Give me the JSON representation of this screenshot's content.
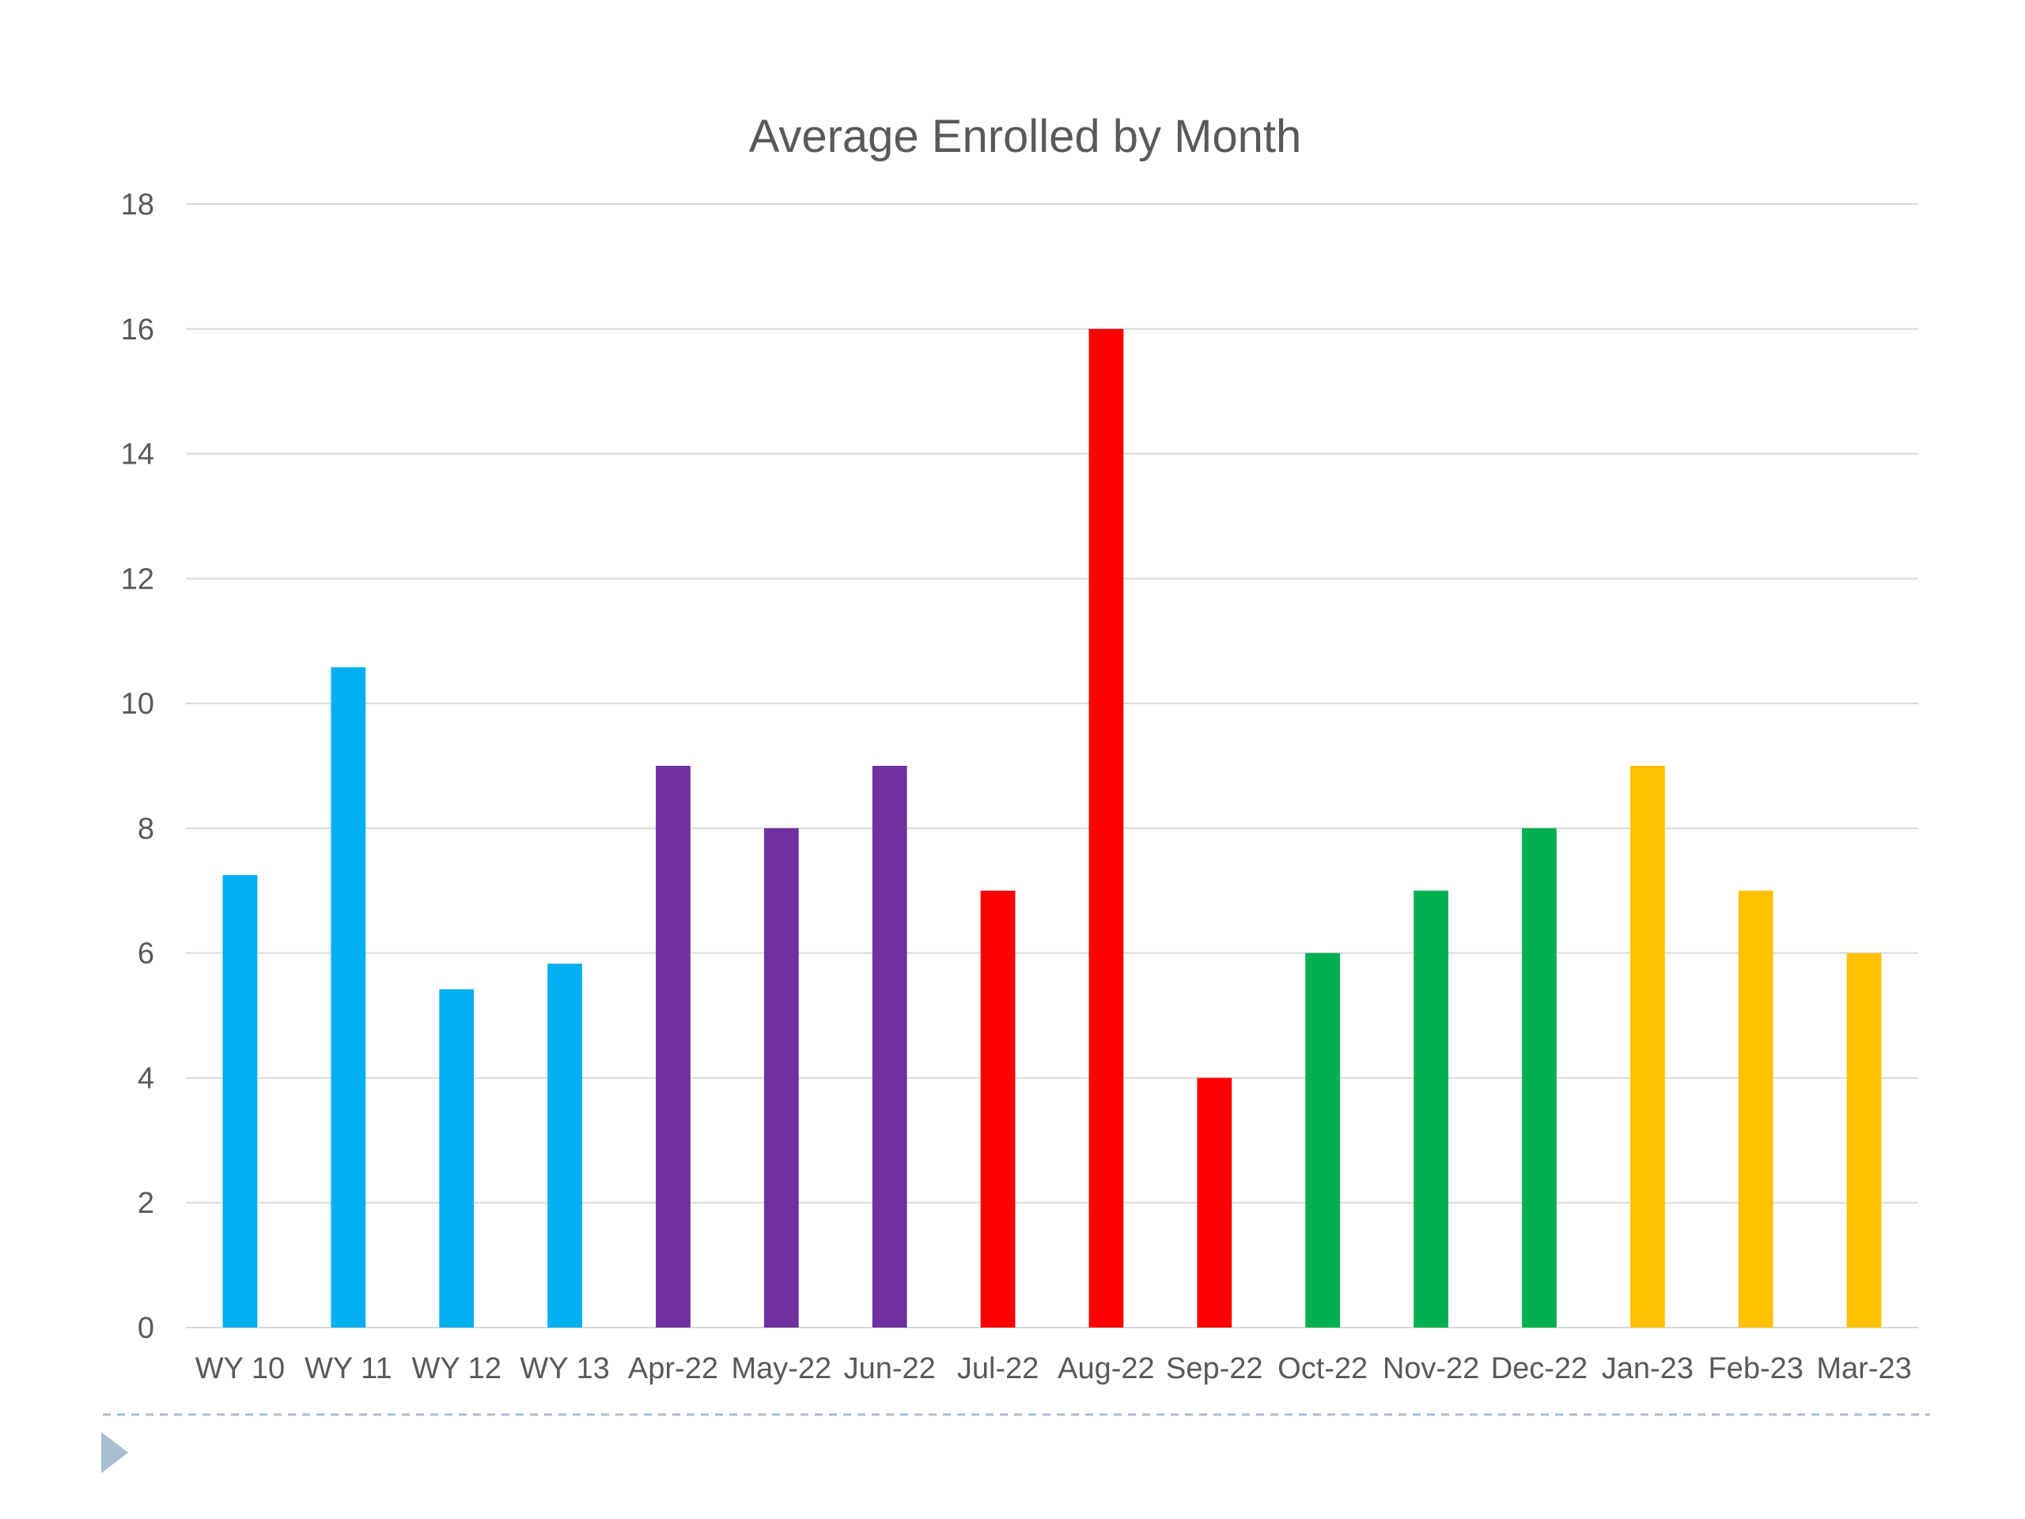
{
  "chart_data": {
    "type": "bar",
    "title": "Average Enrolled by Month",
    "xlabel": "",
    "ylabel": "",
    "ylim": [
      0,
      18
    ],
    "yticks": [
      0,
      2,
      4,
      6,
      8,
      10,
      12,
      14,
      16,
      18
    ],
    "grid": true,
    "legend": "none",
    "categories": [
      "WY 10",
      "WY 11",
      "WY 12",
      "WY 13",
      "Apr-22",
      "May-22",
      "Jun-22",
      "Jul-22",
      "Aug-22",
      "Sep-22",
      "Oct-22",
      "Nov-22",
      "Dec-22",
      "Jan-23",
      "Feb-23",
      "Mar-23"
    ],
    "values": [
      7.25,
      10.58,
      5.42,
      5.83,
      9,
      8,
      9,
      7,
      16,
      4,
      6,
      7,
      8,
      9,
      7,
      6
    ],
    "colors": [
      "#00b0f0",
      "#00b0f0",
      "#00b0f0",
      "#00b0f0",
      "#7030a0",
      "#7030a0",
      "#7030a0",
      "#ff0000",
      "#ff0000",
      "#ff0000",
      "#00b050",
      "#00b050",
      "#00b050",
      "#ffc000",
      "#ffc000",
      "#ffc000"
    ]
  },
  "slide": {
    "bullet_icon": "triangle-bullet-icon",
    "bullet_color": "#a9bdd3"
  }
}
